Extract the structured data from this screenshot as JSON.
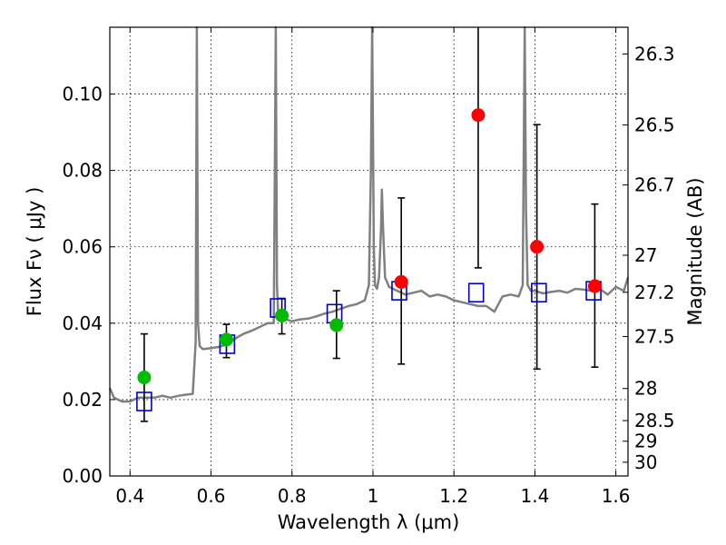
{
  "chart_data": {
    "type": "scatter",
    "title": "",
    "xlabel": "Wavelength  λ (μm)",
    "ylabel": "Flux  Fν  ( μJy )",
    "y2label": "Magnitude (AB)",
    "xlim": [
      0.35,
      1.63
    ],
    "ylim": [
      0.0,
      0.1175
    ],
    "grid": true,
    "x_ticks": [
      0.4,
      0.6,
      0.8,
      1.0,
      1.2,
      1.4,
      1.6
    ],
    "x_tick_labels": [
      "0.4",
      "0.6",
      "0.8",
      "1",
      "1.2",
      "1.4",
      "1.6"
    ],
    "y_ticks": [
      0.0,
      0.02,
      0.04,
      0.06,
      0.08,
      0.1
    ],
    "y_tick_labels": [
      "0.00",
      "0.02",
      "0.04",
      "0.06",
      "0.08",
      "0.10"
    ],
    "y2_ticks": [
      {
        "label": "26.3",
        "flux": 0.1105
      },
      {
        "label": "26.5",
        "flux": 0.0919
      },
      {
        "label": "26.7",
        "flux": 0.0762
      },
      {
        "label": "27",
        "flux": 0.0578
      },
      {
        "label": "27.2",
        "flux": 0.0481
      },
      {
        "label": "27.5",
        "flux": 0.0365
      },
      {
        "label": "28",
        "flux": 0.0229
      },
      {
        "label": "28.5",
        "flux": 0.0145
      },
      {
        "label": "29",
        "flux": 0.0091
      },
      {
        "label": "30",
        "flux": 0.0036
      }
    ],
    "colors": {
      "spectrum": "#808080",
      "green_points": "#00bb00",
      "red_points": "#ff0000",
      "model_squares": "#0000cc",
      "errorbars": "#000000",
      "grid": "#000000"
    },
    "series": [
      {
        "kind": "model-squares",
        "x": [
          0.435,
          0.64,
          0.765,
          0.905,
          1.065,
          1.255,
          1.41,
          1.545
        ],
        "y": [
          0.0195,
          0.0345,
          0.044,
          0.0425,
          0.0485,
          0.048,
          0.048,
          0.0485
        ]
      },
      {
        "kind": "green-points",
        "x": [
          0.435,
          0.638,
          0.775,
          0.91
        ],
        "y": [
          0.0258,
          0.0357,
          0.042,
          0.0395
        ],
        "err_low": [
          0.0143,
          0.031,
          0.0372,
          0.0308
        ],
        "err_high": [
          0.0372,
          0.0397,
          0.0465,
          0.0485
        ]
      },
      {
        "kind": "red-points",
        "x": [
          1.07,
          1.26,
          1.405,
          1.548
        ],
        "y": [
          0.0508,
          0.0945,
          0.06,
          0.0497
        ],
        "err_low": [
          0.0293,
          0.0545,
          0.028,
          0.0285
        ],
        "err_high": [
          0.0728,
          0.1175,
          0.092,
          0.0712
        ]
      }
    ],
    "spectrum": {
      "x": [
        0.35,
        0.36,
        0.38,
        0.4,
        0.42,
        0.44,
        0.46,
        0.48,
        0.5,
        0.52,
        0.54,
        0.555,
        0.562,
        0.565,
        0.568,
        0.572,
        0.58,
        0.6,
        0.62,
        0.64,
        0.66,
        0.68,
        0.7,
        0.72,
        0.74,
        0.755,
        0.76,
        0.763,
        0.766,
        0.77,
        0.78,
        0.8,
        0.82,
        0.84,
        0.86,
        0.88,
        0.9,
        0.92,
        0.94,
        0.96,
        0.98,
        0.99,
        0.995,
        0.998,
        1.0,
        1.002,
        1.005,
        1.01,
        1.015,
        1.02,
        1.022,
        1.025,
        1.03,
        1.04,
        1.06,
        1.08,
        1.1,
        1.12,
        1.14,
        1.16,
        1.18,
        1.2,
        1.22,
        1.24,
        1.26,
        1.28,
        1.3,
        1.32,
        1.34,
        1.36,
        1.37,
        1.375,
        1.378,
        1.382,
        1.39,
        1.4,
        1.42,
        1.44,
        1.46,
        1.48,
        1.5,
        1.52,
        1.54,
        1.56,
        1.58,
        1.6,
        1.62,
        1.63
      ],
      "y": [
        0.023,
        0.0205,
        0.0195,
        0.0195,
        0.0205,
        0.0205,
        0.0205,
        0.021,
        0.0205,
        0.021,
        0.0213,
        0.0215,
        0.035,
        0.1175,
        0.04,
        0.034,
        0.0332,
        0.0335,
        0.0338,
        0.0345,
        0.036,
        0.0372,
        0.038,
        0.039,
        0.04,
        0.04,
        0.1175,
        0.05,
        0.042,
        0.0418,
        0.0412,
        0.0405,
        0.041,
        0.0412,
        0.0418,
        0.0425,
        0.043,
        0.0438,
        0.0445,
        0.045,
        0.046,
        0.05,
        0.08,
        0.1175,
        0.09,
        0.06,
        0.05,
        0.049,
        0.052,
        0.065,
        0.075,
        0.065,
        0.052,
        0.0495,
        0.0485,
        0.0475,
        0.048,
        0.0485,
        0.047,
        0.0475,
        0.047,
        0.046,
        0.0455,
        0.045,
        0.0445,
        0.0445,
        0.043,
        0.047,
        0.0475,
        0.047,
        0.05,
        0.1175,
        0.07,
        0.05,
        0.0485,
        0.0485,
        0.0478,
        0.0482,
        0.0485,
        0.048,
        0.049,
        0.0488,
        0.0485,
        0.049,
        0.0475,
        0.0495,
        0.0485,
        0.052
      ]
    }
  }
}
